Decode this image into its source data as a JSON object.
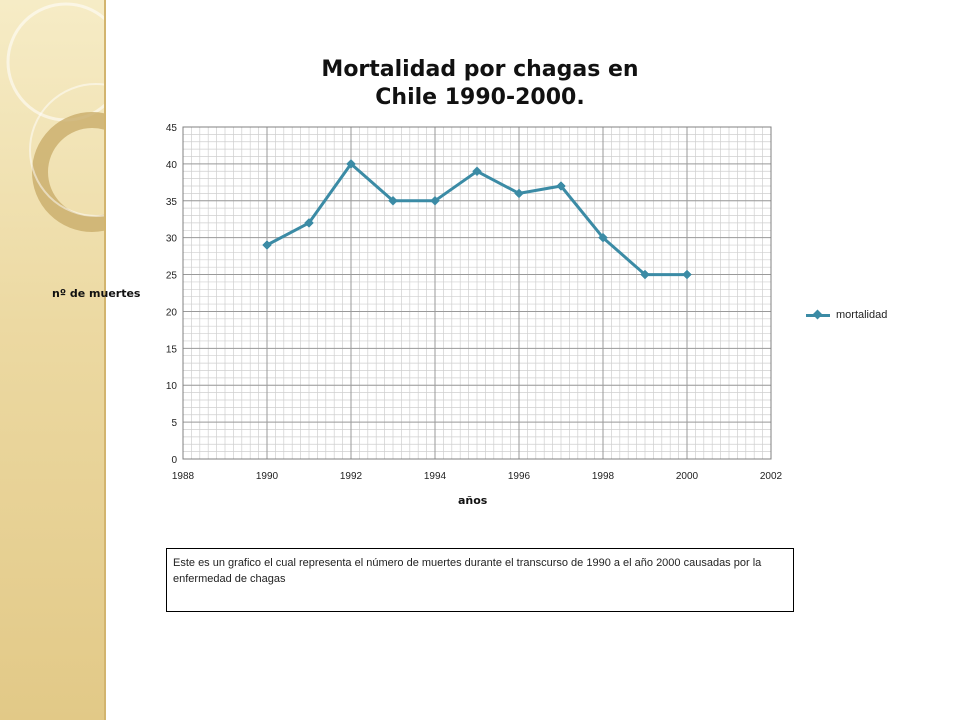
{
  "chart_data": {
    "type": "line",
    "title": "Mortalidad por chagas en Chile 1990-2000.",
    "title_lines": [
      "Mortalidad por chagas en",
      "Chile 1990-2000."
    ],
    "xlabel": "años",
    "ylabel": "nº de muertes",
    "xlim": [
      1988,
      2002
    ],
    "ylim": [
      0,
      45
    ],
    "x_ticks": [
      1988,
      1990,
      1992,
      1994,
      1996,
      1998,
      2000,
      2002
    ],
    "y_ticks": [
      0,
      5,
      10,
      15,
      20,
      25,
      30,
      35,
      40,
      45
    ],
    "grid": true,
    "legend_position": "right",
    "series": [
      {
        "name": "mortalidad",
        "color": "#3b8ba5",
        "marker": "diamond",
        "x": [
          1990,
          1991,
          1992,
          1993,
          1994,
          1995,
          1996,
          1997,
          1998,
          1999,
          2000
        ],
        "y": [
          29,
          32,
          40,
          35,
          35,
          39,
          36,
          37,
          30,
          25,
          25
        ]
      }
    ]
  },
  "caption": "Este es un grafico el cual representa el número de muertes durante el transcurso de 1990 a el año 2000 causadas por la enfermedad de chagas"
}
